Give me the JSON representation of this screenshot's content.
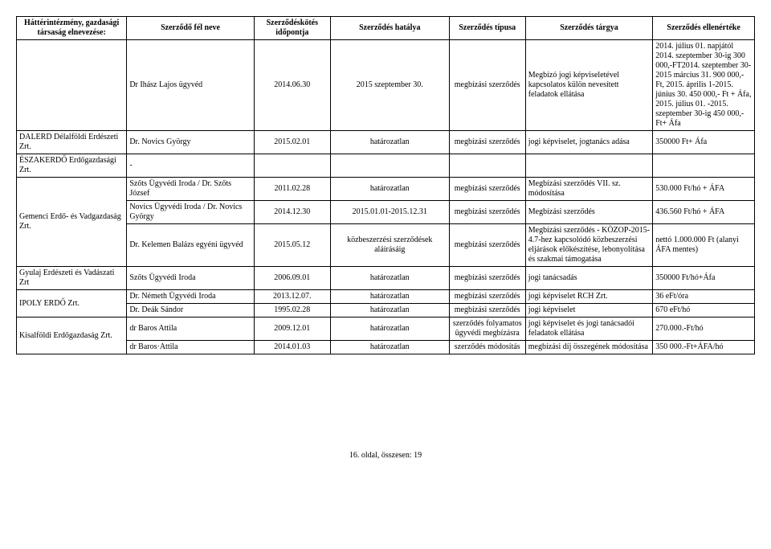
{
  "headers": {
    "c1": "Háttérintézmény, gazdasági társaság elnevezése:",
    "c2": "Szerződő fél neve",
    "c3": "Szerződéskötés időpontja",
    "c4": "Szerződés hatálya",
    "c5": "Szerződés típusa",
    "c6": "Szerződés tárgya",
    "c7": "Szerződés ellenértéke"
  },
  "rows": [
    {
      "c1": "",
      "c2": "Dr  Ihász Lajos ügyvéd",
      "c3": "2014.06.30",
      "c4": "2015 szeptember 30.",
      "c5": "megbízási szerződés",
      "c6": "Megbízó jogi képviseletével kapcsolatos külön nevesített feladatok ellátása",
      "c7": "2014. július 01. napjától 2014. szeptember 30-ig 300 000,-FT2014. szeptember 30- 2015 március 31. 900 000,-Ft, 2015. április 1-2015. június 30. 450 000,- Ft + Áfa, 2015. július 01. -2015. szeptember 30-ig 450 000,-Ft+ Áfa"
    },
    {
      "c1": "DALERD Délalföldi Erdészeti Zrt.",
      "c2": "Dr. Novics György",
      "c3": "2015.02.01",
      "c4": "határozatlan",
      "c5": "megbízási szerződés",
      "c6": "jogi képviselet, jogtanács adása",
      "c7": "350000 Ft+ Áfa"
    },
    {
      "c1": "ÉSZAKERDŐ Erdőgazdasági Zrt.",
      "c2": "-",
      "c3": "",
      "c4": "",
      "c5": "",
      "c6": "",
      "c7": ""
    },
    {
      "c1_rowspan": 3,
      "c1": "Gemenci Erdő- és Vadgazdaság Zrt.",
      "c2": "Szőts Ügyvédi Iroda / Dr. Szőts József",
      "c3": "2011.02.28",
      "c4": "határozatlan",
      "c5": "megbízási szerződés",
      "c6": "Megbízási szerződés VII. sz. módosítása",
      "c7": "530.000 Ft/hó + ÁFA"
    },
    {
      "c2": "Novics Ügyvédi Iroda / Dr. Novics György",
      "c3": "2014.12.30",
      "c4": "2015.01.01-2015.12.31",
      "c5": "megbízási szerződés",
      "c6": "Megbízási szerződés",
      "c7": "436.560 Ft/hó + ÁFA"
    },
    {
      "c2": "Dr. Kelemen Balázs egyéni ügyvéd",
      "c3": "2015.05.12",
      "c4": "közbeszerzési szerződések aláírásáig",
      "c5": "megbízási szerződés",
      "c6": "Megbízási szerződés - KÖZOP-2015-4.7-hez kapcsolódó közbeszerzési eljárások előkészítése, lebonyolítása és szakmai támogatása",
      "c7": "nettó 1.000.000 Ft (alanyi ÁFA mentes)"
    },
    {
      "c1": "Gyulaj Erdészeti és Vadászati Zrt",
      "c2": "Szőts Ügyvédi Iroda",
      "c3": "2006.09.01",
      "c4": "határozatlan",
      "c5": "megbízási szerződés",
      "c6": "jogi tanácsadás",
      "c7": "350000 Ft/hó+Áfa"
    },
    {
      "c1_rowspan": 2,
      "c1": "IPOLY ERDŐ Zrt.",
      "c2": "Dr. Németh Ügyvédi Iroda",
      "c3": "2013.12.07.",
      "c4": "határozatlan",
      "c5": "megbízási szerződés",
      "c6": "jogi képviselet RCH Zrt.",
      "c7": "36 eFt/óra"
    },
    {
      "c2": "Dr. Deák Sándor",
      "c3": "1995.02.28",
      "c4": "határozatlan",
      "c5": "megbízási szerződés",
      "c6": "jogi képviselet",
      "c7": "670 eFt/hó"
    },
    {
      "c1_rowspan": 2,
      "c1": "Kisalföldi Erdőgazdaság Zrt.",
      "c2": "dr Baros Attila",
      "c3": "2009.12.01",
      "c4": "határozatlan",
      "c5": "szerződés folyamatos ügyvédi megbízásra",
      "c6": "jogi képviselet és jogi tanácsadói feladatok ellátása",
      "c7": "270.000.-Ft/hó"
    },
    {
      "c2": "dr Baros·Attila",
      "c3": "2014.01.03",
      "c4": "határozatlan",
      "c5": "szerződés módosítás",
      "c6": "megbízási díj összegének módosítása",
      "c7": "350 000.-Ft+ÁFA/hó"
    }
  ],
  "footer": "16. oldal, összesen: 19"
}
